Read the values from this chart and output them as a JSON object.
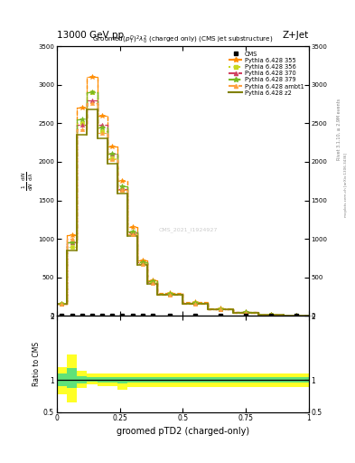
{
  "title_top": "13000 GeV pp",
  "title_right": "Z+Jet",
  "main_title": "Groomed$(p_T^D)^2\\lambda_0^2$ (charged only) (CMS jet substructure)",
  "xlabel": "groomed pTD2 (charged-only)",
  "ylabel_ratio": "Ratio to CMS",
  "rivet_label": "Rivet 3.1.10, ≥ 2.9M events",
  "mcplots_label": "mcplots.cern.ch [arXiv:1306.3436]",
  "watermark": "CMS_2021_I1924927",
  "x_bins": [
    0.0,
    0.04,
    0.08,
    0.12,
    0.16,
    0.2,
    0.24,
    0.28,
    0.32,
    0.36,
    0.4,
    0.5,
    0.6,
    0.7,
    0.8,
    0.9,
    1.0
  ],
  "cms_y": [
    0,
    0,
    0,
    0,
    0,
    0,
    0,
    0,
    0,
    0,
    0,
    0,
    0,
    0,
    0,
    0
  ],
  "pythia_355": [
    150,
    1050,
    2700,
    3100,
    2600,
    2200,
    1750,
    1150,
    720,
    460,
    300,
    175,
    95,
    48,
    20,
    8
  ],
  "pythia_356": [
    150,
    900,
    2500,
    2900,
    2400,
    2050,
    1640,
    1070,
    685,
    435,
    280,
    162,
    88,
    43,
    17,
    7
  ],
  "pythia_370": [
    150,
    950,
    2480,
    2800,
    2480,
    2100,
    1650,
    1080,
    690,
    440,
    282,
    164,
    89,
    44,
    17,
    7
  ],
  "pythia_379": [
    150,
    950,
    2550,
    2900,
    2450,
    2100,
    1680,
    1100,
    700,
    445,
    285,
    166,
    90,
    45,
    18,
    7
  ],
  "pythia_ambt1": [
    150,
    1000,
    2420,
    2760,
    2380,
    2040,
    1630,
    1060,
    675,
    425,
    272,
    158,
    86,
    42,
    16,
    6
  ],
  "pythia_z2": [
    150,
    850,
    2350,
    2680,
    2300,
    1980,
    1590,
    1040,
    660,
    415,
    268,
    155,
    84,
    41,
    16,
    6
  ],
  "colors_355": "#ff8c00",
  "colors_356": "#c8d820",
  "colors_370": "#d04060",
  "colors_379": "#78b820",
  "colors_ambt1": "#ffa040",
  "colors_z2": "#808000",
  "xlim": [
    0.0,
    1.0
  ],
  "ylim_main": [
    0,
    3500
  ],
  "ylim_ratio": [
    0.5,
    2.0
  ],
  "yellow_lo": [
    0.78,
    0.65,
    0.87,
    0.93,
    0.91,
    0.91,
    0.85,
    0.89,
    0.89,
    0.89,
    0.89,
    0.89,
    0.89,
    0.89,
    0.89,
    0.89
  ],
  "yellow_hi": [
    1.2,
    1.4,
    1.15,
    1.1,
    1.1,
    1.1,
    1.1,
    1.1,
    1.1,
    1.1,
    1.1,
    1.1,
    1.1,
    1.1,
    1.1,
    1.1
  ],
  "green_lo": [
    0.9,
    0.88,
    0.95,
    0.97,
    0.96,
    0.96,
    0.95,
    0.96,
    0.96,
    0.96,
    0.96,
    0.96,
    0.96,
    0.96,
    0.96,
    0.96
  ],
  "green_hi": [
    1.1,
    1.18,
    1.06,
    1.04,
    1.04,
    1.04,
    1.04,
    1.04,
    1.04,
    1.04,
    1.04,
    1.04,
    1.04,
    1.04,
    1.04,
    1.04
  ]
}
